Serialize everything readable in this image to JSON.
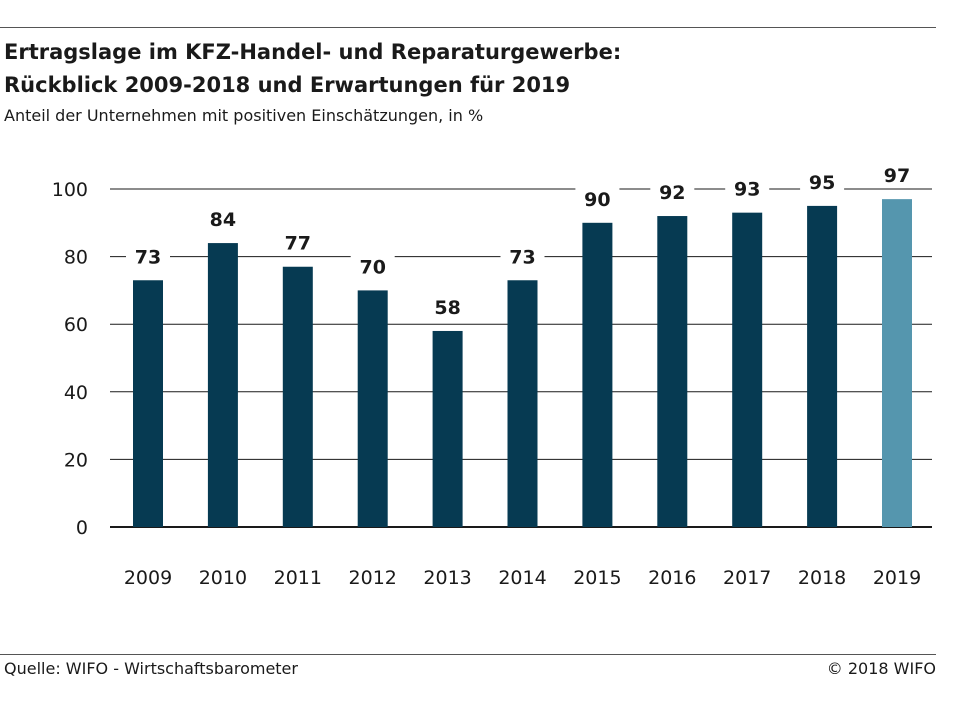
{
  "header": {
    "title_line1": "Ertragslage im KFZ-Handel- und Reparaturgewerbe:",
    "title_line2": "Rückblick 2009-2018 und Erwartungen für 2019",
    "subtitle": "Anteil der Unternehmen mit positiven Einschätzungen, in %"
  },
  "footer": {
    "source": "Quelle: WIFO - Wirtschaftsbarometer",
    "copyright": "© 2018 WIFO"
  },
  "colors": {
    "bar": "#063a52",
    "bar_forecast": "#5596ae",
    "grid": "#1a1a1a"
  },
  "chart_data": {
    "type": "bar",
    "title": "Ertragslage im KFZ-Handel- und Reparaturgewerbe: Rückblick 2009-2018 und Erwartungen für 2019",
    "subtitle": "Anteil der Unternehmen mit positiven Einschätzungen, in %",
    "categories": [
      "2009",
      "2010",
      "2011",
      "2012",
      "2013",
      "2014",
      "2015",
      "2016",
      "2017",
      "2018",
      "2019"
    ],
    "values": [
      73,
      84,
      77,
      70,
      58,
      73,
      90,
      92,
      93,
      95,
      97
    ],
    "value_labels": [
      "73",
      "84",
      "77",
      "70",
      "58",
      "73",
      "90",
      "92",
      "93",
      "95",
      "97"
    ],
    "forecast_categories": [
      "2019"
    ],
    "ylim": [
      0,
      100
    ],
    "yticks": [
      0,
      20,
      40,
      60,
      80,
      100
    ],
    "ytick_labels": [
      "0",
      "20",
      "40",
      "60",
      "80",
      "100"
    ],
    "xlabel": "",
    "ylabel": "",
    "grid": true,
    "legend": "none"
  }
}
